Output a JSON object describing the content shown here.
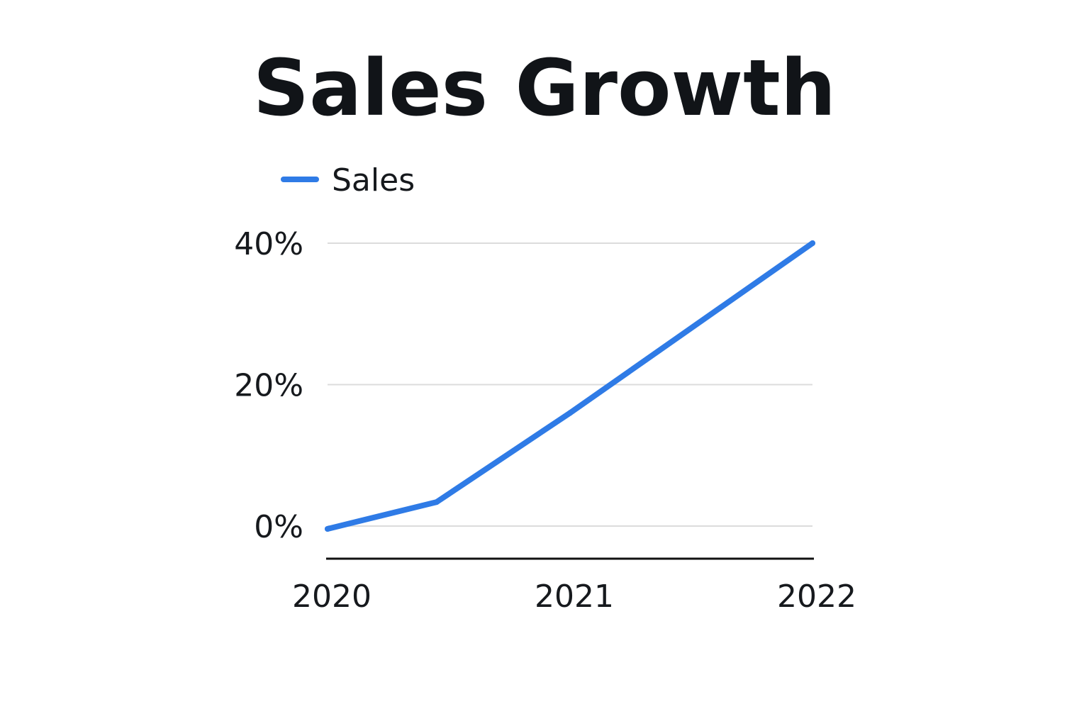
{
  "chart_data": {
    "type": "line",
    "title": "Sales Growth",
    "xlabel": "",
    "ylabel": "",
    "x_ticks": [
      {
        "label": "2020",
        "value": 2020
      },
      {
        "label": "2021",
        "value": 2021
      },
      {
        "label": "2022",
        "value": 2022
      }
    ],
    "y_ticks": [
      {
        "label": "0%",
        "value": 0
      },
      {
        "label": "20%",
        "value": 20
      },
      {
        "label": "40%",
        "value": 40
      }
    ],
    "xlim": [
      2020,
      2022
    ],
    "ylim": [
      0,
      40
    ],
    "grid": true,
    "legend_position": "top-left",
    "series": [
      {
        "name": "Sales",
        "color": "#2f7be6",
        "points": [
          {
            "x": 2020,
            "y": -0.4
          },
          {
            "x": 2020.45,
            "y": 3.4
          },
          {
            "x": 2021,
            "y": 16.0
          },
          {
            "x": 2022,
            "y": 40.0
          }
        ]
      }
    ]
  }
}
